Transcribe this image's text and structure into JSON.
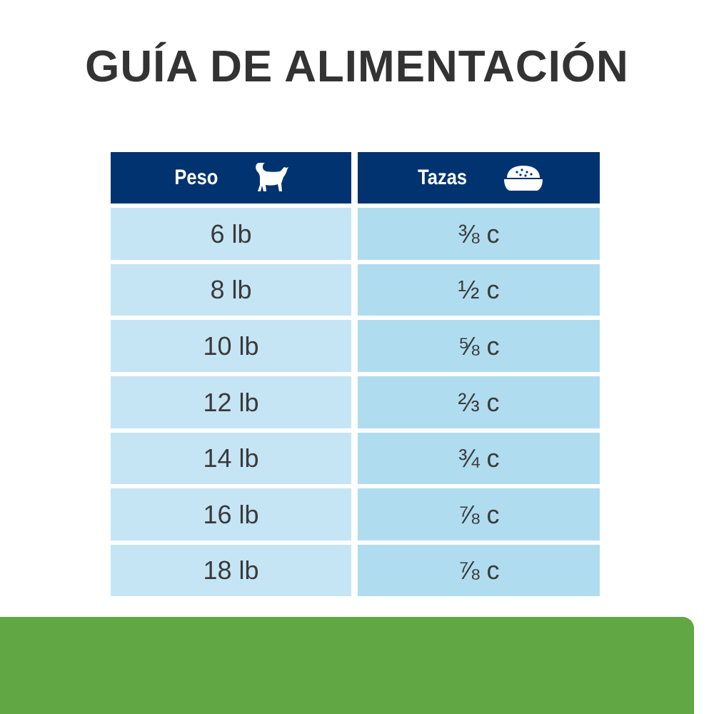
{
  "title": "GUÍA DE ALIMENTACIÓN",
  "table": {
    "headers": [
      {
        "label": "Peso",
        "icon": "cat-icon"
      },
      {
        "label": "Tazas",
        "icon": "food-bowl-icon"
      }
    ],
    "rows": [
      {
        "weight": "6 lb",
        "cups": "⅜ c"
      },
      {
        "weight": "8 lb",
        "cups": "½ c"
      },
      {
        "weight": "10 lb",
        "cups": "⅝ c"
      },
      {
        "weight": "12 lb",
        "cups": "⅔ c"
      },
      {
        "weight": "14 lb",
        "cups": "¾ c"
      },
      {
        "weight": "16 lb",
        "cups": "⅞ c"
      },
      {
        "weight": "18 lb",
        "cups": "⅞ c"
      }
    ]
  },
  "colors": {
    "header": "#003370",
    "weight_cell": "#c5e5f5",
    "cups_cell": "#b0dcf0",
    "footer": "#61a744",
    "text": "#333333"
  }
}
